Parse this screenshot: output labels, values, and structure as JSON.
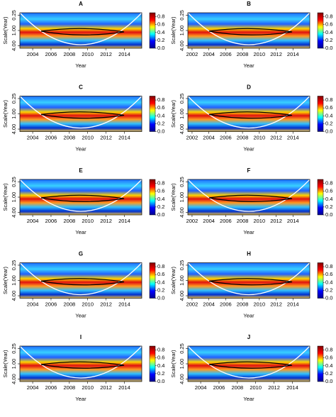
{
  "chart_data": [
    {
      "type": "heatmap",
      "title": "A",
      "xlabel": "Year",
      "ylabel": "Scale(Year)",
      "xlim": [
        2002.6,
        2015.9
      ],
      "xticks": [
        2004,
        2006,
        2008,
        2010,
        2012,
        2014
      ],
      "ylim": [
        0.2,
        5.0
      ],
      "ylog": true,
      "yreverse": true,
      "yticks": [
        0.25,
        {
          "value": 1,
          "label": "1.00"
        },
        {
          "value": 4,
          "label": "4.00"
        }
      ],
      "colorlim": [
        0,
        0.9
      ],
      "colorticks": [
        {
          "value": 0,
          "label": "0.0"
        },
        0.2,
        0.4,
        0.6,
        0.8
      ],
      "colormap": [
        "#00008f",
        "#0000ff",
        "#00ffff",
        "#ffff00",
        "#ff0000",
        "#800000"
      ]
    },
    {
      "type": "heatmap",
      "title": "B",
      "xlabel": "Year",
      "ylabel": "Scale(Year)",
      "xlim": [
        2001.5,
        2016.0
      ],
      "xticks": [
        2002,
        2004,
        2006,
        2008,
        2010,
        2012,
        2014
      ],
      "ylim": [
        0.2,
        5.0
      ],
      "ylog": true,
      "yreverse": true,
      "yticks": [
        0.25,
        {
          "value": 1,
          "label": "1.00"
        },
        {
          "value": 4,
          "label": "4.00"
        }
      ],
      "colorlim": [
        0,
        0.9
      ],
      "colorticks": [
        {
          "value": 0,
          "label": "0.0"
        },
        0.2,
        0.4,
        0.6,
        0.8
      ],
      "colormap": [
        "#00008f",
        "#0000ff",
        "#00ffff",
        "#ffff00",
        "#ff0000",
        "#800000"
      ]
    },
    {
      "type": "heatmap",
      "title": "C",
      "xlabel": "Year",
      "ylabel": "Scale(Year)",
      "xlim": [
        2002.6,
        2015.9
      ],
      "xticks": [
        2004,
        2006,
        2008,
        2010,
        2012,
        2014
      ],
      "ylim": [
        0.2,
        5.0
      ],
      "ylog": true,
      "yreverse": true,
      "yticks": [
        0.25,
        {
          "value": 1,
          "label": "1.00"
        },
        {
          "value": 4,
          "label": "4.00"
        }
      ],
      "colorlim": [
        0,
        0.9
      ],
      "colorticks": [
        {
          "value": 0,
          "label": "0.0"
        },
        0.2,
        0.4,
        0.6,
        0.8
      ],
      "colormap": [
        "#00008f",
        "#0000ff",
        "#00ffff",
        "#ffff00",
        "#ff0000",
        "#800000"
      ]
    },
    {
      "type": "heatmap",
      "title": "D",
      "xlabel": "Year",
      "ylabel": "Scale(Year)",
      "xlim": [
        2001.5,
        2016.0
      ],
      "xticks": [
        2002,
        2004,
        2006,
        2008,
        2010,
        2012,
        2014
      ],
      "ylim": [
        0.2,
        5.0
      ],
      "ylog": true,
      "yreverse": true,
      "yticks": [
        0.25,
        {
          "value": 1,
          "label": "1.00"
        },
        {
          "value": 4,
          "label": "4.00"
        }
      ],
      "colorlim": [
        0,
        0.9
      ],
      "colorticks": [
        {
          "value": 0,
          "label": "0.0"
        },
        0.2,
        0.4,
        0.6,
        0.8
      ],
      "colormap": [
        "#00008f",
        "#0000ff",
        "#00ffff",
        "#ffff00",
        "#ff0000",
        "#800000"
      ]
    },
    {
      "type": "heatmap",
      "title": "E",
      "xlabel": "Year",
      "ylabel": "Scale(Year)",
      "xlim": [
        2002.6,
        2015.9
      ],
      "xticks": [
        2004,
        2006,
        2008,
        2010,
        2012,
        2014
      ],
      "ylim": [
        0.2,
        5.0
      ],
      "ylog": true,
      "yreverse": true,
      "yticks": [
        0.25,
        {
          "value": 1,
          "label": "1.00"
        },
        {
          "value": 4,
          "label": "4.00"
        }
      ],
      "colorlim": [
        0,
        0.9
      ],
      "colorticks": [
        {
          "value": 0,
          "label": "0.0"
        },
        0.2,
        0.4,
        0.6,
        0.8
      ],
      "colormap": [
        "#00008f",
        "#0000ff",
        "#00ffff",
        "#ffff00",
        "#ff0000",
        "#800000"
      ]
    },
    {
      "type": "heatmap",
      "title": "F",
      "xlabel": "Year",
      "ylabel": "Scale(Year)",
      "xlim": [
        2001.5,
        2016.0
      ],
      "xticks": [
        2002,
        2004,
        2006,
        2008,
        2010,
        2012,
        2014
      ],
      "ylim": [
        0.2,
        5.0
      ],
      "ylog": true,
      "yreverse": true,
      "yticks": [
        0.25,
        {
          "value": 1,
          "label": "1.00"
        },
        {
          "value": 4,
          "label": "4.00"
        }
      ],
      "colorlim": [
        0,
        0.9
      ],
      "colorticks": [
        {
          "value": 0,
          "label": "0.0"
        },
        0.2,
        0.4,
        0.6,
        0.8
      ],
      "colormap": [
        "#00008f",
        "#0000ff",
        "#00ffff",
        "#ffff00",
        "#ff0000",
        "#800000"
      ]
    },
    {
      "type": "heatmap",
      "title": "G",
      "xlabel": "Year",
      "ylabel": "Scale(Year)",
      "xlim": [
        2002.6,
        2015.9
      ],
      "xticks": [
        2004,
        2006,
        2008,
        2010,
        2012,
        2014
      ],
      "ylim": [
        0.2,
        5.0
      ],
      "ylog": true,
      "yreverse": true,
      "yticks": [
        0.25,
        {
          "value": 1,
          "label": "1.00"
        },
        {
          "value": 4,
          "label": "4.00"
        }
      ],
      "colorlim": [
        0,
        0.9
      ],
      "colorticks": [
        {
          "value": 0,
          "label": "0.0"
        },
        0.2,
        0.4,
        0.6,
        0.8
      ],
      "colormap": [
        "#00008f",
        "#0000ff",
        "#00ffff",
        "#ffff00",
        "#ff0000",
        "#800000"
      ]
    },
    {
      "type": "heatmap",
      "title": "H",
      "xlabel": "Year",
      "ylabel": "Scale(Year)",
      "xlim": [
        2001.5,
        2016.0
      ],
      "xticks": [
        2002,
        2004,
        2006,
        2008,
        2010,
        2012,
        2014
      ],
      "ylim": [
        0.2,
        5.0
      ],
      "ylog": true,
      "yreverse": true,
      "yticks": [
        0.25,
        {
          "value": 1,
          "label": "1.00"
        },
        {
          "value": 4,
          "label": "4.00"
        }
      ],
      "colorlim": [
        0,
        0.9
      ],
      "colorticks": [
        {
          "value": 0,
          "label": "0.0"
        },
        0.2,
        0.4,
        0.6,
        0.8
      ],
      "colormap": [
        "#00008f",
        "#0000ff",
        "#00ffff",
        "#ffff00",
        "#ff0000",
        "#800000"
      ]
    },
    {
      "type": "heatmap",
      "title": "I",
      "xlabel": "Year",
      "ylabel": "Scale(Year)",
      "xlim": [
        2002.6,
        2015.9
      ],
      "xticks": [
        2004,
        2006,
        2008,
        2010,
        2012,
        2014
      ],
      "ylim": [
        0.2,
        5.0
      ],
      "ylog": true,
      "yreverse": true,
      "yticks": [
        0.25,
        {
          "value": 1,
          "label": "1.00"
        },
        {
          "value": 4,
          "label": "4.00"
        }
      ],
      "colorlim": [
        0,
        0.9
      ],
      "colorticks": [
        {
          "value": 0,
          "label": "0.0"
        },
        0.2,
        0.4,
        0.6,
        0.8
      ],
      "colormap": [
        "#00008f",
        "#0000ff",
        "#00ffff",
        "#ffff00",
        "#ff0000",
        "#800000"
      ]
    },
    {
      "type": "heatmap",
      "title": "J",
      "xlabel": "Year",
      "ylabel": "Scale(Year)",
      "xlim": [
        2002.6,
        2015.9
      ],
      "xticks": [
        2004,
        2006,
        2008,
        2010,
        2012,
        2014
      ],
      "ylim": [
        0.2,
        5.0
      ],
      "ylog": true,
      "yreverse": true,
      "yticks": [
        0.25,
        {
          "value": 1,
          "label": "1.00"
        },
        {
          "value": 4,
          "label": "4.00"
        }
      ],
      "colorlim": [
        0,
        0.9
      ],
      "colorticks": [
        {
          "value": 0,
          "label": "0.0"
        },
        0.2,
        0.4,
        0.6,
        0.8
      ],
      "colormap": [
        "#00008f",
        "#0000ff",
        "#00ffff",
        "#ffff00",
        "#ff0000",
        "#800000"
      ]
    }
  ]
}
